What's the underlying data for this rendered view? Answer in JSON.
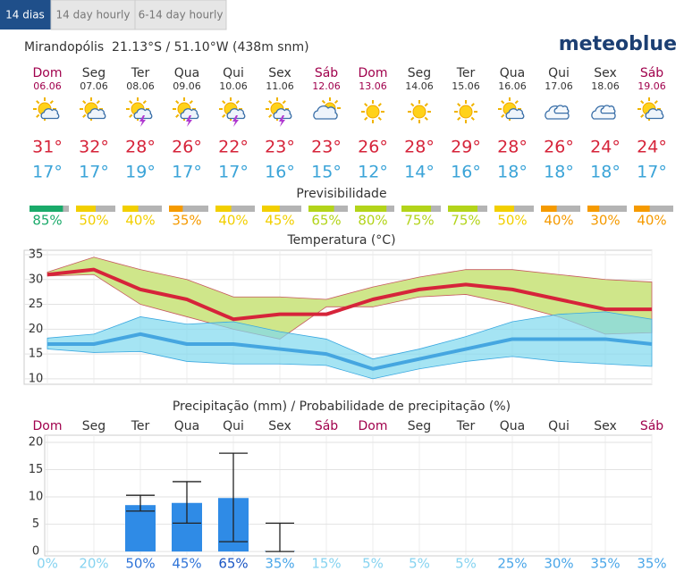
{
  "tabs": [
    "14 dias",
    "14 day hourly",
    "6-14 day hourly"
  ],
  "location": "Mirandopólis  21.13°S / 51.10°W (438m snm)",
  "logo": "meteoblue",
  "days": [
    {
      "name": "Dom",
      "date": "06.06",
      "max": "31°",
      "min": "17°"
    },
    {
      "name": "Seg",
      "date": "07.06",
      "max": "32°",
      "min": "17°"
    },
    {
      "name": "Ter",
      "date": "08.06",
      "max": "28°",
      "min": "19°"
    },
    {
      "name": "Qua",
      "date": "09.06",
      "max": "26°",
      "min": "17°"
    },
    {
      "name": "Qui",
      "date": "10.06",
      "max": "22°",
      "min": "17°"
    },
    {
      "name": "Sex",
      "date": "11.06",
      "max": "23°",
      "min": "16°"
    },
    {
      "name": "Sáb",
      "date": "12.06",
      "max": "23°",
      "min": "15°"
    },
    {
      "name": "Dom",
      "date": "13.06",
      "max": "26°",
      "min": "12°"
    },
    {
      "name": "Seg",
      "date": "14.06",
      "max": "28°",
      "min": "14°"
    },
    {
      "name": "Ter",
      "date": "15.06",
      "max": "29°",
      "min": "16°"
    },
    {
      "name": "Qua",
      "date": "16.06",
      "max": "28°",
      "min": "18°"
    },
    {
      "name": "Qui",
      "date": "17.06",
      "max": "26°",
      "min": "18°"
    },
    {
      "name": "Sex",
      "date": "18.06",
      "max": "24°",
      "min": "18°"
    },
    {
      "name": "Sáb",
      "date": "19.06",
      "max": "24°",
      "min": "17°"
    }
  ],
  "predictability": {
    "title": "Previsibilidade",
    "values": [
      85,
      50,
      40,
      35,
      40,
      45,
      65,
      80,
      75,
      75,
      50,
      40,
      30,
      40
    ],
    "value_labels": [
      "85%",
      "50%",
      "40%",
      "35%",
      "40%",
      "45%",
      "65%",
      "80%",
      "75%",
      "75%",
      "50%",
      "40%",
      "30%",
      "40%"
    ],
    "colors": [
      "#1aaa6a",
      "#f2cf00",
      "#f2cf00",
      "#f59a00",
      "#f2cf00",
      "#f2cf00",
      "#b3d41a",
      "#b3d41a",
      "#b3d41a",
      "#b3d41a",
      "#f2cf00",
      "#f59a00",
      "#f59a00",
      "#f59a00"
    ]
  },
  "chart_data": [
    {
      "type": "line",
      "title": "Temperatura (°C)",
      "ylim": [
        8.9,
        35.9
      ],
      "yticks": [
        10,
        15,
        20,
        25,
        30,
        35
      ],
      "grid": true,
      "bands": [
        {
          "color": "#cfe68a",
          "upper": [
            31.5,
            34.5,
            32,
            30,
            26.5,
            26.5,
            26,
            28.5,
            30.5,
            32,
            32,
            31,
            30,
            29.5
          ],
          "lower": [
            30.7,
            31,
            25,
            22.5,
            20,
            18,
            24.5,
            24.5,
            26.5,
            27,
            25,
            22.5,
            19,
            19.3
          ]
        },
        {
          "color": "#7fd8ee",
          "upper": [
            18.2,
            19,
            22.5,
            21,
            21.5,
            19.5,
            18,
            14,
            16,
            18.5,
            21.5,
            23,
            23.5,
            22
          ],
          "lower": [
            16,
            15.3,
            15.5,
            13.5,
            13,
            13,
            12.7,
            10,
            12,
            13.5,
            14.5,
            13.5,
            13,
            12.5
          ]
        }
      ],
      "series": [
        {
          "color": "#d6243a",
          "values": [
            31,
            32,
            28,
            26,
            22,
            23,
            23,
            26,
            28,
            29,
            28,
            26,
            24,
            24
          ]
        },
        {
          "color": "#45a6e0",
          "values": [
            17,
            17,
            19,
            17,
            17,
            16,
            15,
            12,
            14,
            16,
            18,
            18,
            18,
            17
          ]
        }
      ]
    },
    {
      "type": "bar",
      "title": "Precipitação (mm) / Probabilidade de precipitação (%)",
      "categories": [
        "Dom",
        "Seg",
        "Ter",
        "Qua",
        "Qui",
        "Sex",
        "Sáb",
        "Dom",
        "Seg",
        "Ter",
        "Qua",
        "Qui",
        "Sex",
        "Sáb"
      ],
      "values": [
        0,
        0,
        8.5,
        8.9,
        9.8,
        0.1,
        0,
        0,
        0,
        0,
        0,
        0,
        0,
        0
      ],
      "error_low": [
        null,
        null,
        7.4,
        5.2,
        1.8,
        0,
        null,
        null,
        null,
        null,
        null,
        null,
        null,
        null
      ],
      "error_high": [
        null,
        null,
        10.3,
        12.8,
        18,
        5.2,
        null,
        null,
        null,
        null,
        null,
        null,
        null,
        null
      ],
      "color": "#2f8be6",
      "ylim": [
        -0.8,
        21.3
      ],
      "yticks": [
        0,
        5,
        10,
        15,
        20
      ],
      "grid": true,
      "probability": {
        "values": [
          0,
          20,
          50,
          45,
          65,
          35,
          15,
          5,
          5,
          5,
          25,
          30,
          35,
          35
        ],
        "value_labels": [
          "0%",
          "20%",
          "50%",
          "45%",
          "65%",
          "35%",
          "15%",
          "5%",
          "5%",
          "5%",
          "25%",
          "30%",
          "35%",
          "35%"
        ]
      }
    }
  ]
}
